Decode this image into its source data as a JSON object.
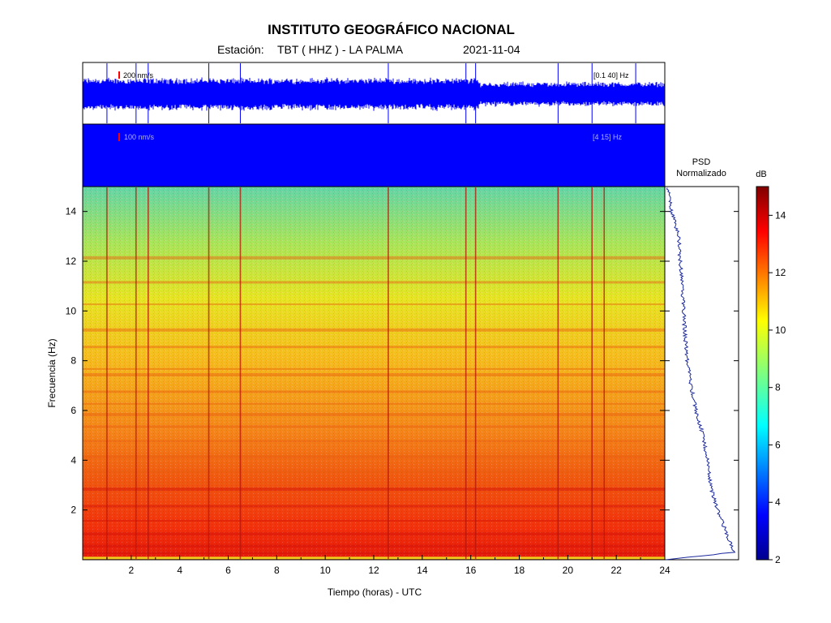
{
  "header": {
    "title": "INSTITUTO GEOGRÁFICO NACIONAL",
    "station_label": "Estación:",
    "station_value": "TBT ( HHZ ) - LA PALMA",
    "date": "2021-11-04"
  },
  "trace1": {
    "scale_label": "200 nm/s",
    "band_label": "[0.1 40] Hz"
  },
  "trace2": {
    "scale_label": "100 nm/s",
    "band_label": "[4 15] Hz"
  },
  "psd": {
    "title_line1": "PSD",
    "title_line2": "Normalizado"
  },
  "colorbar": {
    "label": "dB",
    "min": 2,
    "max": 15,
    "ticks": [
      "2",
      "4",
      "6",
      "8",
      "10",
      "12",
      "14"
    ]
  },
  "colors": {
    "trace": "#0000ff",
    "psd_line": "#1c2a9c",
    "annotation_marker": "#ff0000"
  },
  "chart_data": {
    "type": "heatmap",
    "title": "INSTITUTO GEOGRÁFICO NACIONAL",
    "xlabel": "Tiempo (horas) - UTC",
    "ylabel": "Frecuencia  (Hz)",
    "xlim": [
      0,
      24
    ],
    "ylim": [
      0,
      15
    ],
    "x_ticks": [
      "2",
      "4",
      "6",
      "8",
      "10",
      "12",
      "14",
      "16",
      "18",
      "20",
      "22",
      "24"
    ],
    "y_ticks": [
      "2",
      "4",
      "6",
      "8",
      "10",
      "12",
      "14"
    ],
    "colorbar_range_db": [
      2,
      15
    ],
    "mean_level_db_by_frequency": [
      {
        "freq_hz": 0.0,
        "db": 12.5
      },
      {
        "freq_hz": 0.5,
        "db": 14.0
      },
      {
        "freq_hz": 1.5,
        "db": 13.5
      },
      {
        "freq_hz": 3.0,
        "db": 12.5
      },
      {
        "freq_hz": 5.0,
        "db": 12.0
      },
      {
        "freq_hz": 7.0,
        "db": 11.0
      },
      {
        "freq_hz": 9.0,
        "db": 10.5
      },
      {
        "freq_hz": 11.0,
        "db": 10.0
      },
      {
        "freq_hz": 13.0,
        "db": 9.0
      },
      {
        "freq_hz": 15.0,
        "db": 8.5
      }
    ],
    "event_times_hours": [
      1.0,
      2.2,
      2.7,
      5.2,
      6.5,
      12.6,
      15.8,
      16.2,
      19.6,
      21.0,
      21.5
    ],
    "psd_normalized_profile": [
      {
        "freq_hz": 0.0,
        "value": 0.02
      },
      {
        "freq_hz": 0.3,
        "value": 0.95
      },
      {
        "freq_hz": 1.0,
        "value": 0.85
      },
      {
        "freq_hz": 2.0,
        "value": 0.72
      },
      {
        "freq_hz": 3.0,
        "value": 0.62
      },
      {
        "freq_hz": 4.0,
        "value": 0.58
      },
      {
        "freq_hz": 5.0,
        "value": 0.52
      },
      {
        "freq_hz": 6.0,
        "value": 0.42
      },
      {
        "freq_hz": 7.0,
        "value": 0.35
      },
      {
        "freq_hz": 8.0,
        "value": 0.3
      },
      {
        "freq_hz": 9.0,
        "value": 0.27
      },
      {
        "freq_hz": 10.0,
        "value": 0.25
      },
      {
        "freq_hz": 11.0,
        "value": 0.23
      },
      {
        "freq_hz": 12.0,
        "value": 0.2
      },
      {
        "freq_hz": 13.0,
        "value": 0.18
      },
      {
        "freq_hz": 14.0,
        "value": 0.08
      },
      {
        "freq_hz": 15.0,
        "value": 0.02
      }
    ]
  }
}
